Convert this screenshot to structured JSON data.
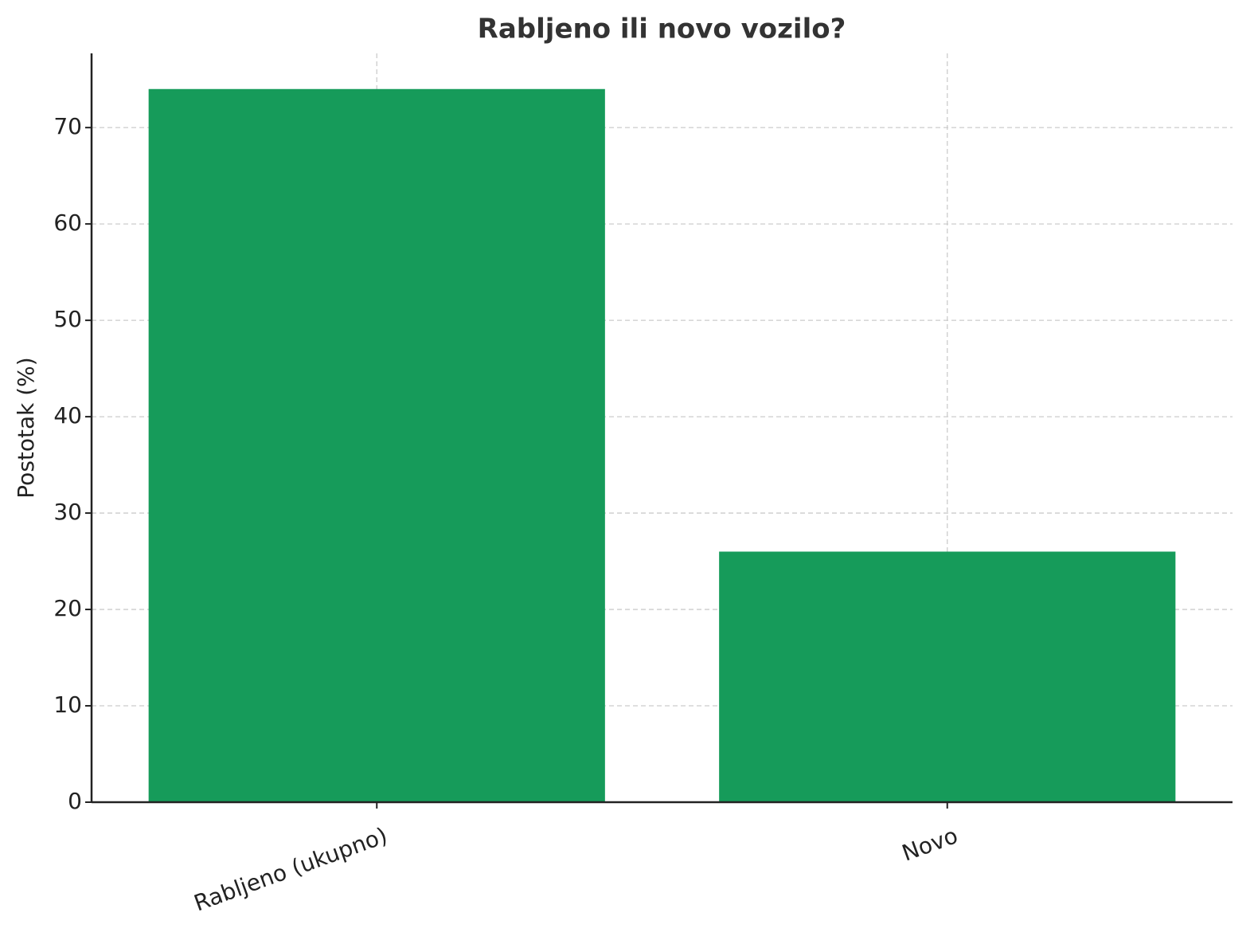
{
  "chart_data": {
    "type": "bar",
    "title": "Rabljeno ili novo vozilo?",
    "y_label": "Postotak (%)",
    "categories": [
      "Rabljeno (ukupno)",
      "Novo"
    ],
    "values": [
      74,
      26
    ],
    "color": "#169b5a",
    "ylim": [
      0,
      77.7
    ],
    "yticks": [
      0,
      10,
      20,
      30,
      40,
      50,
      60,
      70
    ],
    "grid": true
  }
}
